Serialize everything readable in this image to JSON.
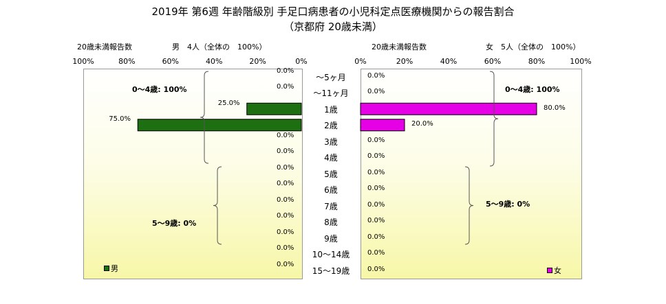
{
  "title_line1": "2019年 第6週 年齢階級別 手足口病患者の小児科定点医療機関からの報告割合",
  "title_line2": "（京都府 20歳未満）",
  "left_panel": {
    "header_label": "20歳未満報告数",
    "header_total": "男　4人（全体の　100%）",
    "ticks": [
      "100%",
      "80%",
      "60%",
      "40%",
      "20%",
      "0%"
    ],
    "group_note_1": "0～4歳: 100%",
    "group_note_2": "5～9歳: 0%",
    "legend": "男"
  },
  "right_panel": {
    "header_label": "20歳未満報告数",
    "header_total": "女　5人（全体の　100%）",
    "ticks": [
      "0%",
      "20%",
      "40%",
      "60%",
      "80%",
      "100%"
    ],
    "group_note_1": "0～4歳: 100%",
    "group_note_2": "5～9歳: 0%",
    "legend": "女"
  },
  "colors": {
    "male": "#1e6e12",
    "female": "#e600e6"
  },
  "chart_data": {
    "type": "bar",
    "categories": [
      "～5ヶ月",
      "～11ヶ月",
      "1歳",
      "2歳",
      "3歳",
      "4歳",
      "5歳",
      "6歳",
      "7歳",
      "8歳",
      "9歳",
      "10～14歳",
      "15～19歳"
    ],
    "series": [
      {
        "name": "男",
        "values": [
          0.0,
          0.0,
          25.0,
          75.0,
          0.0,
          0.0,
          0.0,
          0.0,
          0.0,
          0.0,
          0.0,
          0.0,
          0.0
        ],
        "labels": [
          "0.0%",
          "0.0%",
          "25.0%",
          "75.0%",
          "0.0%",
          "0.0%",
          "0.0%",
          "0.0%",
          "0.0%",
          "0.0%",
          "0.0%",
          "0.0%",
          "0.0%"
        ]
      },
      {
        "name": "女",
        "values": [
          0.0,
          0.0,
          80.0,
          20.0,
          0.0,
          0.0,
          0.0,
          0.0,
          0.0,
          0.0,
          0.0,
          0.0,
          0.0
        ],
        "labels": [
          "0.0%",
          "0.0%",
          "80.0%",
          "20.0%",
          "0.0%",
          "0.0%",
          "0.0%",
          "0.0%",
          "0.0%",
          "0.0%",
          "0.0%",
          "0.0%",
          "0.0%"
        ]
      }
    ],
    "xlim": [
      0,
      100
    ],
    "grid": false
  }
}
